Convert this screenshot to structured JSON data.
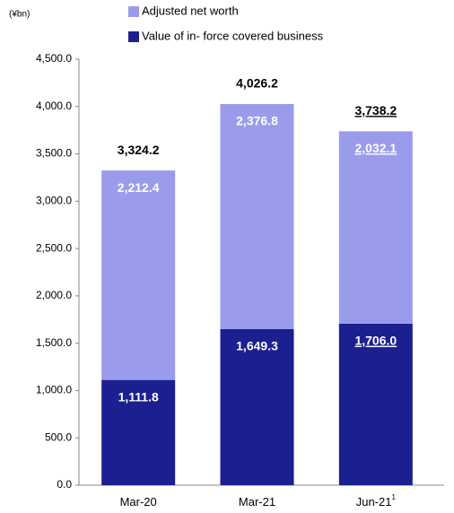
{
  "chart_data": {
    "type": "stacked_bar",
    "unit_label": "(¥bn)",
    "categories": [
      "Mar-20",
      "Mar-21",
      "Jun-21"
    ],
    "category_footnotes": [
      null,
      null,
      "1"
    ],
    "series": [
      {
        "name": "Value of in- force covered business",
        "color": "#1b1f8f",
        "values": [
          1111.8,
          1649.3,
          1706.0
        ],
        "value_labels": [
          "1,111.8",
          "1,649.3",
          "1,706.0"
        ]
      },
      {
        "name": "Adjusted net worth",
        "color": "#9b9bec",
        "values": [
          2212.4,
          2376.8,
          2032.1
        ],
        "value_labels": [
          "2,212.4",
          "2,376.8",
          "2,032.1"
        ]
      }
    ],
    "totals": [
      3324.2,
      4026.2,
      3738.2
    ],
    "total_labels": [
      "3,324.2",
      "4,026.2",
      "3,738.2"
    ],
    "underlined_labels": [
      false,
      false,
      true
    ],
    "ylim": [
      0,
      4500
    ],
    "yticks": [
      {
        "value": 0,
        "label": "0.0"
      },
      {
        "value": 500,
        "label": "500.0"
      },
      {
        "value": 1000,
        "label": "1,000.0"
      },
      {
        "value": 1500,
        "label": "1,500.0"
      },
      {
        "value": 2000,
        "label": "2,000.0"
      },
      {
        "value": 2500,
        "label": "2,500.0"
      },
      {
        "value": 3000,
        "label": "3,000.0"
      },
      {
        "value": 3500,
        "label": "3,500.0"
      },
      {
        "value": 4000,
        "label": "4,000.0"
      },
      {
        "value": 4500,
        "label": "4,500.0"
      }
    ],
    "grid": false
  }
}
